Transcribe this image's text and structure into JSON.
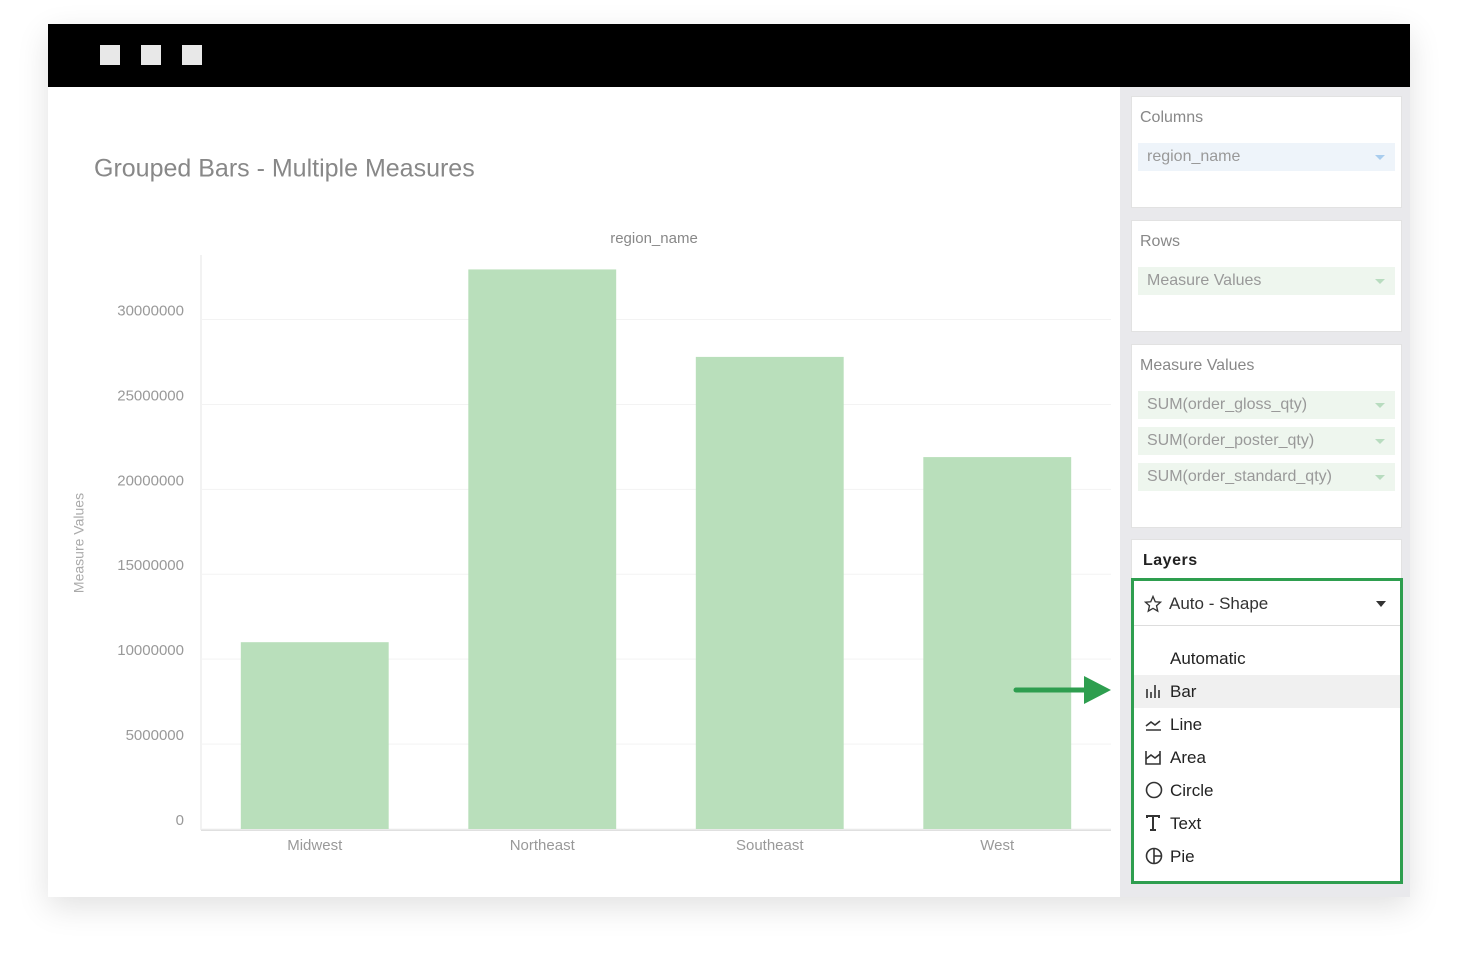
{
  "chart_data": {
    "type": "bar",
    "title": "Grouped Bars - Multiple Measures",
    "column_header": "region_name",
    "y_label": "Measure Values",
    "categories": [
      "Midwest",
      "Northeast",
      "Southeast",
      "West"
    ],
    "values": [
      11000000,
      32950000,
      27800000,
      21900000
    ],
    "color": "#b9dfbb",
    "ylim": [
      0,
      33800000
    ],
    "yticks": [
      0,
      5000000,
      10000000,
      15000000,
      20000000,
      25000000,
      30000000
    ],
    "grid": true
  },
  "panel": {
    "columns": {
      "title": "Columns",
      "fields": [
        "region_name"
      ]
    },
    "rows": {
      "title": "Rows",
      "fields": [
        "Measure Values"
      ]
    },
    "measure_values": {
      "title": "Measure Values",
      "fields": [
        "SUM(order_gloss_qty)",
        "SUM(order_poster_qty)",
        "SUM(order_standard_qty)"
      ]
    },
    "layers": {
      "title": "Layers",
      "selected": "Auto - Shape",
      "options": [
        "Automatic",
        "Bar",
        "Line",
        "Area",
        "Circle",
        "Text",
        "Pie"
      ]
    }
  }
}
